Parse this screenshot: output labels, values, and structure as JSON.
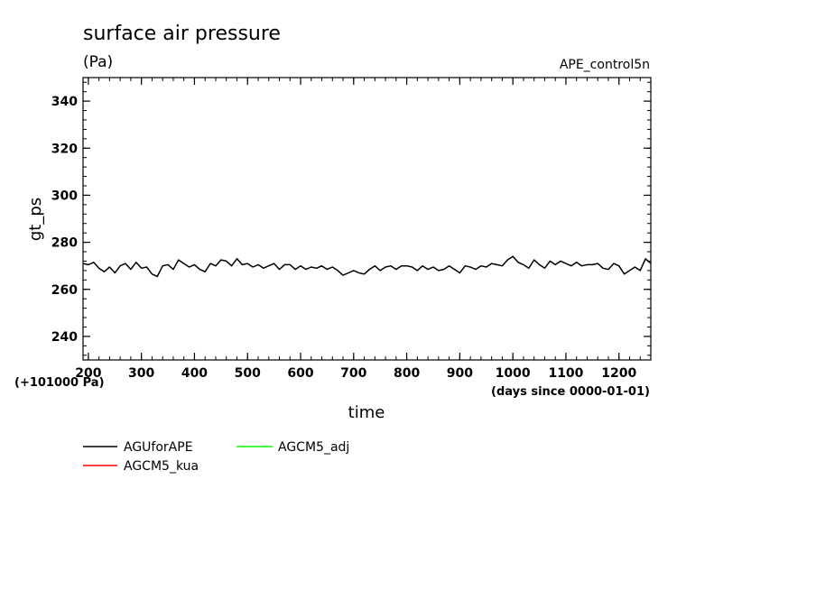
{
  "chart_data": {
    "type": "line",
    "title": "surface air pressure",
    "units": "(Pa)",
    "experiment": "APE_control5n",
    "xlabel": "time",
    "x_units_note": "(days since 0000-01-01)",
    "ylabel": "gt_ps",
    "y_offset_note": "(+101000 Pa)",
    "xlim": [
      190,
      1260
    ],
    "ylim": [
      230,
      350
    ],
    "x_ticks": [
      200,
      300,
      400,
      500,
      600,
      700,
      800,
      900,
      1000,
      1100,
      1200
    ],
    "y_ticks": [
      240,
      260,
      280,
      300,
      320,
      340
    ],
    "legend_position": "bottom-left",
    "series": [
      {
        "name": "AGUforAPE",
        "color": "#000000",
        "x": [
          190,
          200,
          210,
          220,
          230,
          240,
          250,
          260,
          270,
          280,
          290,
          300,
          310,
          320,
          330,
          340,
          350,
          360,
          370,
          380,
          390,
          400,
          410,
          420,
          430,
          440,
          450,
          460,
          470,
          480,
          490,
          500,
          510,
          520,
          530,
          540,
          550,
          560,
          570,
          580,
          590,
          600,
          610,
          620,
          630,
          640,
          650,
          660,
          670,
          680,
          690,
          700,
          710,
          720,
          730,
          740,
          750,
          760,
          770,
          780,
          790,
          800,
          810,
          820,
          830,
          840,
          850,
          860,
          870,
          880,
          890,
          900,
          910,
          920,
          930,
          940,
          950,
          960,
          970,
          980,
          990,
          1000,
          1010,
          1020,
          1030,
          1040,
          1050,
          1060,
          1070,
          1080,
          1090,
          1100,
          1110,
          1120,
          1130,
          1140,
          1150,
          1160,
          1170,
          1180,
          1190,
          1200,
          1210,
          1220,
          1230,
          1240,
          1250,
          1260
        ],
        "values": [
          271,
          270.5,
          271.5,
          269,
          267.5,
          269.5,
          267,
          270,
          271,
          268.5,
          271.5,
          269,
          269.5,
          266.5,
          265.5,
          270,
          270.5,
          268.5,
          272.5,
          271,
          269.5,
          270.5,
          268.5,
          267.5,
          271,
          270,
          272.5,
          272,
          270,
          273,
          270.5,
          271,
          269.5,
          270.5,
          269,
          270,
          271,
          268.5,
          270.5,
          270.5,
          268.5,
          270,
          268.5,
          269.5,
          269,
          270,
          268.5,
          269.5,
          268,
          266,
          267,
          268,
          267,
          266.5,
          268.5,
          270,
          268,
          269.5,
          270,
          268.5,
          270,
          270,
          269.5,
          268,
          270,
          268.5,
          269.5,
          268,
          268.5,
          270,
          268.5,
          267,
          270,
          269.5,
          268.5,
          270,
          269.5,
          271,
          270.5,
          270,
          272.5,
          274,
          271.5,
          270.5,
          269,
          272.5,
          270.5,
          269,
          272,
          270.5,
          272,
          271,
          270,
          271.5,
          270,
          270.5,
          270.5,
          271,
          269,
          268.5,
          271,
          270,
          266.5,
          268,
          269.5,
          268,
          273,
          271
        ]
      },
      {
        "name": "AGCM5_kua",
        "color": "#ff0000"
      },
      {
        "name": "AGCM5_adj",
        "color": "#00ff00"
      }
    ]
  }
}
